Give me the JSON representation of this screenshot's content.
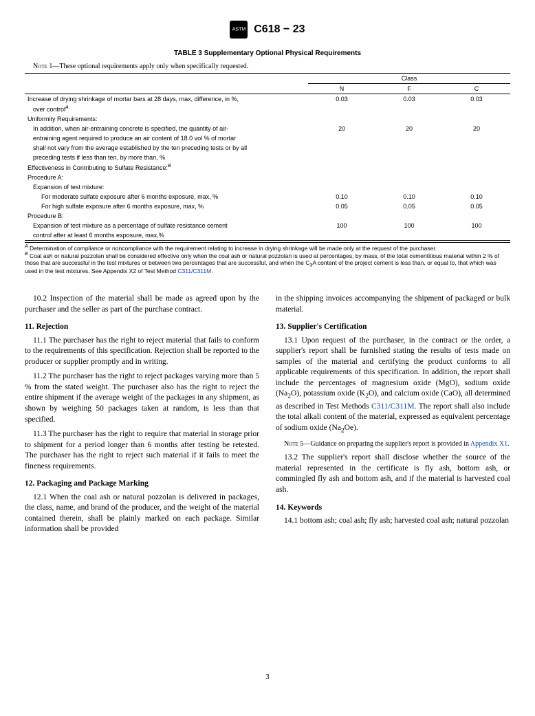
{
  "header": {
    "doc_id": "C618 − 23"
  },
  "table": {
    "title": "TABLE 3 Supplementary Optional Physical Requirements",
    "note_label": "Note 1",
    "note_text": "—These optional requirements apply only when specifically requested.",
    "class_header": "Class",
    "col_headers": [
      "N",
      "F",
      "C"
    ],
    "rows": [
      {
        "desc": "Increase of drying shrinkage of mortar bars at 28 days, max, difference, in %,",
        "desc2": "over control",
        "sup": "A",
        "indent": 0,
        "vals": [
          "0.03",
          "0.03",
          "0.03"
        ]
      },
      {
        "desc": "Uniformity Requirements:",
        "indent": 0
      },
      {
        "desc": "In addition, when air-entraining concrete is specified, the quantity of air-",
        "indent": 1,
        "vals": [
          "20",
          "20",
          "20"
        ]
      },
      {
        "desc": "entraining agent required to produce an air content of 18.0 vol % of mortar",
        "indent": 1
      },
      {
        "desc": "shall not vary from the average established by the ten preceding tests or by all",
        "indent": 1
      },
      {
        "desc": "preceding tests if less than ten, by more than, %",
        "indent": 1
      },
      {
        "desc": "Effectiveness in Contributing to Sulfate Resistance:",
        "sup": "B",
        "indent": 0
      },
      {
        "desc": "Procedure A:",
        "indent": 0
      },
      {
        "desc": "Expansion of test mixture:",
        "indent": 1
      },
      {
        "desc": "For moderate sulfate exposure after 6 months exposure, max, %",
        "indent": 2,
        "vals": [
          "0.10",
          "0.10",
          "0.10"
        ]
      },
      {
        "desc": "For high sulfate exposure after 6 months exposure, max, %",
        "indent": 2,
        "vals": [
          "0.05",
          "0.05",
          "0.05"
        ]
      },
      {
        "desc": "Procedure B:",
        "indent": 0
      },
      {
        "desc": "Expansion of test mixture as a percentage of sulfate resistance cement",
        "indent": 1,
        "vals": [
          "100",
          "100",
          "100"
        ]
      },
      {
        "desc": "control after at least 6 months exposure, max,%",
        "indent": 1
      }
    ],
    "footnote_a_sup": "A",
    "footnote_a": " Determination of compliance or noncompliance with the requirement relating to increase in drying shrinkage will be made only at the request of the purchaser.",
    "footnote_b_sup": "B",
    "footnote_b_1": " Coal ash or natural pozzolan shall be considered effective only when the coal ash or natural pozzolan is used at percentages, by mass, of the total cementitious material within 2 % of those that are successful in the test mixtures or between two percentages that are successful, and when the C",
    "footnote_b_sub": "3",
    "footnote_b_2": "A content of the project cement is less than, or equal to, that which was used in the test mixtures. See Appendix X2 of Test Method ",
    "footnote_b_link": "C311/C311M",
    "footnote_b_3": "."
  },
  "body": {
    "p_10_2": "10.2 Inspection of the material shall be made as agreed upon by the purchaser and the seller as part of the purchase contract.",
    "h11": "11. Rejection",
    "p_11_1": "11.1 The purchaser has the right to reject material that fails to conform to the requirements of this specification. Rejection shall be reported to the producer or supplier promptly and in writing.",
    "p_11_2": "11.2 The purchaser has the right to reject packages varying more than 5 % from the stated weight. The purchaser also has the right to reject the entire shipment if the average weight of the packages in any shipment, as shown by weighing 50 packages taken at random, is less than that specified.",
    "p_11_3": "11.3 The purchaser has the right to require that material in storage prior to shipment for a period longer than 6 months after testing be retested. The purchaser has the right to reject such material if it fails to meet the fineness requirements.",
    "h12": "12. Packaging and Package Marking",
    "p_12_1": "12.1 When the coal ash or natural pozzolan is delivered in packages, the class, name, and brand of the producer, and the weight of the material contained therein, shall be plainly marked on each package. Similar information shall be provided",
    "p_12_1b": "in the shipping invoices accompanying the shipment of packaged or bulk material.",
    "h13": "13. Supplier's Certification",
    "p_13_1a": "13.1 Upon request of the purchaser, in the contract or the order, a supplier's report shall be furnished stating the results of tests made on samples of the material and certifying the product conforms to all applicable requirements of this specification. In addition, the report shall include the percentages of magnesium oxide (MgO), sodium oxide (Na",
    "p_13_1b": "O), potassium oxide (K",
    "p_13_1c": "O), and calcium oxide (CaO), all determined as described in Test Methods ",
    "p_13_1_link": "C311/C311M",
    "p_13_1d": ". The report shall also include the total alkali content of the material, expressed as equivalent percentage of sodium oxide (Na",
    "p_13_1e": "Oe).",
    "note5_label": "Note 5",
    "note5_a": "—Guidance on preparing the supplier's report is provided in ",
    "note5_link": "Appendix X1",
    "note5_b": ".",
    "p_13_2": "13.2 The supplier's report shall disclose whether the source of the material represented in the certificate is fly ash, bottom ash, or commingled fly ash and bottom ash, and if the material is harvested coal ash.",
    "h14": "14. Keywords",
    "p_14_1": "14.1 bottom ash; coal ash; fly ash; harvested coal ash; natural pozzolan"
  },
  "page_number": "3"
}
